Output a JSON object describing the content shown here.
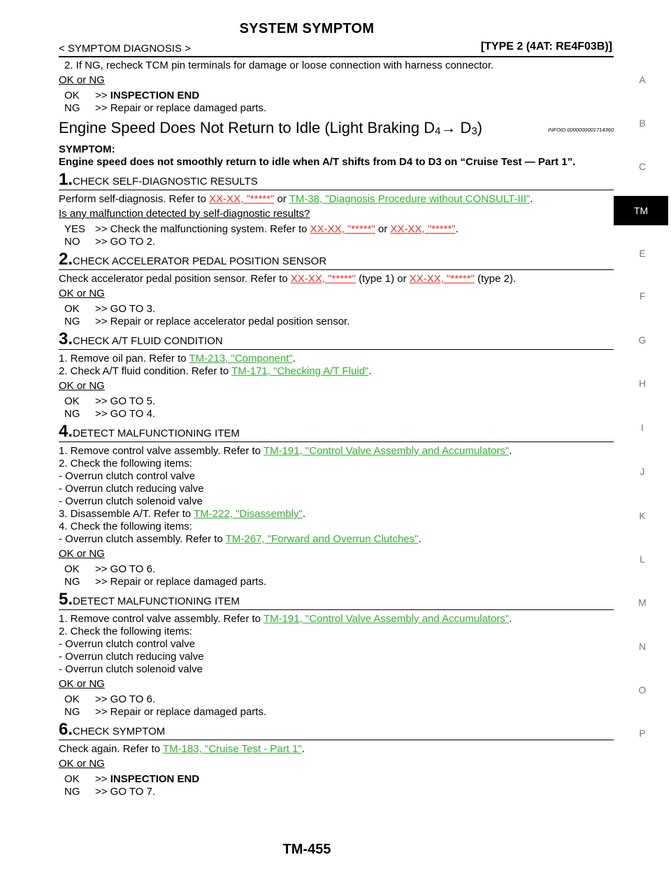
{
  "header": {
    "title": "SYSTEM SYMPTOM",
    "section": "< SYMPTOM DIAGNOSIS >",
    "type": "[TYPE 2 (4AT: RE4F03B)]"
  },
  "prev": {
    "line": "2. If NG, recheck TCM pin terminals for damage or loose connection with harness connector.",
    "oknq": "OK or NG",
    "ok_key": "OK",
    "ok_val": "INSPECTION END",
    "ng_key": "NG",
    "ng_val": "Repair or replace damaged parts."
  },
  "section": {
    "title_a": "Engine Speed Does Not Return to Idle (Light Braking D",
    "title_sub1": "4",
    "title_arrow": "→ D",
    "title_sub2": "3",
    "title_end": ")",
    "infoid": "INFOID:0000000001714360",
    "symptom_label": "SYMPTOM:",
    "symptom_text": "Engine speed does not smoothly return to idle when A/T shifts from D4 to D3 on “Cruise Test — Part 1”."
  },
  "steps": {
    "s1": {
      "num": "1.",
      "title": "CHECK SELF-DIAGNOSTIC RESULTS",
      "l1a": "Perform self-diagnosis. Refer to ",
      "l1link1": "XX-XX, \"*****\"",
      "l1b": " or ",
      "l1link2": "TM-38, \"Diagnosis Procedure without CONSULT-III\"",
      "l1c": ".",
      "question": "Is any malfunction detected by self-diagnostic results?",
      "yes_key": "YES",
      "yes_a": ">> Check the malfunctioning system. Refer to ",
      "yes_link1": "XX-XX, \"*****\"",
      "yes_b": " or ",
      "yes_link2": "XX-XX, \"*****\"",
      "yes_c": ".",
      "no_key": "NO",
      "no_val": ">> GO TO 2."
    },
    "s2": {
      "num": "2.",
      "title": "CHECK ACCELERATOR PEDAL POSITION SENSOR",
      "l1a": "Check accelerator pedal position sensor. Refer to ",
      "l1link1": "XX-XX, \"*****\"",
      "l1b": " (type 1) or ",
      "l1link2": "XX-XX, \"*****\"",
      "l1c": " (type 2).",
      "oknq": "OK or NG",
      "ok_key": "OK",
      "ok_val": ">> GO TO 3.",
      "ng_key": "NG",
      "ng_val": ">> Repair or replace accelerator pedal position sensor."
    },
    "s3": {
      "num": "3.",
      "title": "CHECK A/T FLUID CONDITION",
      "l1a": "1. Remove oil pan. Refer to ",
      "l1link": "TM-213, \"Component\"",
      "l1c": ".",
      "l2a": "2. Check A/T fluid condition. Refer to ",
      "l2link": "TM-171, \"Checking A/T Fluid\"",
      "l2c": ".",
      "oknq": "OK or NG",
      "ok_key": "OK",
      "ok_val": ">> GO TO 5.",
      "ng_key": "NG",
      "ng_val": ">> GO TO 4."
    },
    "s4": {
      "num": "4.",
      "title": "DETECT MALFUNCTIONING ITEM",
      "l1a": "1. Remove control valve assembly. Refer to ",
      "l1link": "TM-191, \"Control Valve Assembly and Accumulators\"",
      "l1c": ".",
      "l2": "2. Check the following items:",
      "l3": "- Overrun clutch control valve",
      "l4": "- Overrun clutch reducing valve",
      "l5": "- Overrun clutch solenoid valve",
      "l6a": "3. Disassemble A/T. Refer to ",
      "l6link": "TM-222, \"Disassembly\"",
      "l6c": ".",
      "l7": "4. Check the following items:",
      "l8a": "- Overrun clutch assembly. Refer to ",
      "l8link": "TM-267, \"Forward and Overrun Clutches\"",
      "l8c": ".",
      "oknq": "OK or NG",
      "ok_key": "OK",
      "ok_val": ">> GO TO 6.",
      "ng_key": "NG",
      "ng_val": ">> Repair or replace damaged parts."
    },
    "s5": {
      "num": "5.",
      "title": "DETECT MALFUNCTIONING ITEM",
      "l1a": "1. Remove control valve assembly. Refer to ",
      "l1link": "TM-191, \"Control Valve Assembly and Accumulators\"",
      "l1c": ".",
      "l2": "2. Check the following items:",
      "l3": "- Overrun clutch control valve",
      "l4": "- Overrun clutch reducing valve",
      "l5": "- Overrun clutch solenoid valve",
      "oknq": "OK or NG",
      "ok_key": "OK",
      "ok_val": ">> GO TO 6.",
      "ng_key": "NG",
      "ng_val": ">> Repair or replace damaged parts."
    },
    "s6": {
      "num": "6.",
      "title": "CHECK SYMPTOM",
      "l1a": "Check again. Refer to ",
      "l1link": "TM-183, \"Cruise Test - Part 1\"",
      "l1c": ".",
      "oknq": "OK or NG",
      "ok_key": "OK",
      "ok_val": "INSPECTION END",
      "ng_key": "NG",
      "ng_val": ">> GO TO 7."
    }
  },
  "side_index": [
    "A",
    "B",
    "C",
    "TM",
    "E",
    "F",
    "G",
    "H",
    "I",
    "J",
    "K",
    "L",
    "M",
    "N",
    "O",
    "P"
  ],
  "page_number": "TM-455"
}
